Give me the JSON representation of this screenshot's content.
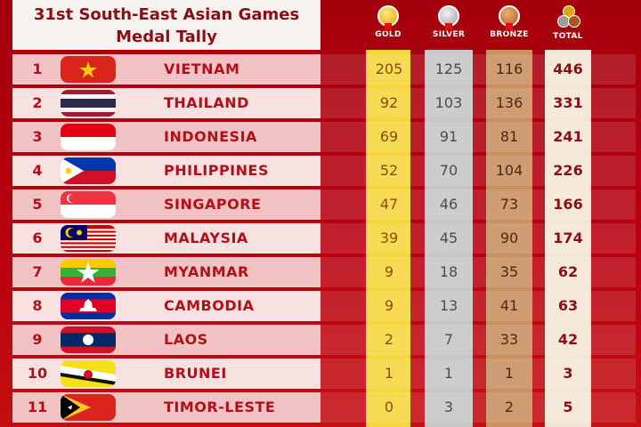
{
  "title": {
    "line1": "31st South-East Asian Games",
    "line2": "Medal Tally"
  },
  "columns": {
    "gold": "GOLD",
    "silver": "SILVER",
    "bronze": "BRONZE",
    "total": "TOTAL"
  },
  "colors": {
    "gold": "#f7d63d",
    "silver": "#c7c7c7",
    "bronze": "#c99060",
    "background": "#b8000f",
    "text_accent": "#b0101a"
  },
  "rows": [
    {
      "rank": "1",
      "country": "VIETNAM",
      "flag": "vietnam-flag-icon",
      "gold": "205",
      "silver": "125",
      "bronze": "116",
      "total": "446"
    },
    {
      "rank": "2",
      "country": "THAILAND",
      "flag": "thailand-flag-icon",
      "gold": "92",
      "silver": "103",
      "bronze": "136",
      "total": "331"
    },
    {
      "rank": "3",
      "country": "INDONESIA",
      "flag": "indonesia-flag-icon",
      "gold": "69",
      "silver": "91",
      "bronze": "81",
      "total": "241"
    },
    {
      "rank": "4",
      "country": "PHILIPPINES",
      "flag": "philippines-flag-icon",
      "gold": "52",
      "silver": "70",
      "bronze": "104",
      "total": "226"
    },
    {
      "rank": "5",
      "country": "SINGAPORE",
      "flag": "singapore-flag-icon",
      "gold": "47",
      "silver": "46",
      "bronze": "73",
      "total": "166"
    },
    {
      "rank": "6",
      "country": "MALAYSIA",
      "flag": "malaysia-flag-icon",
      "gold": "39",
      "silver": "45",
      "bronze": "90",
      "total": "174"
    },
    {
      "rank": "7",
      "country": "MYANMAR",
      "flag": "myanmar-flag-icon",
      "gold": "9",
      "silver": "18",
      "bronze": "35",
      "total": "62"
    },
    {
      "rank": "8",
      "country": "CAMBODIA",
      "flag": "cambodia-flag-icon",
      "gold": "9",
      "silver": "13",
      "bronze": "41",
      "total": "63"
    },
    {
      "rank": "9",
      "country": "LAOS",
      "flag": "laos-flag-icon",
      "gold": "2",
      "silver": "7",
      "bronze": "33",
      "total": "42"
    },
    {
      "rank": "10",
      "country": "BRUNEI",
      "flag": "brunei-flag-icon",
      "gold": "1",
      "silver": "1",
      "bronze": "1",
      "total": "3"
    },
    {
      "rank": "11",
      "country": "TIMOR-LESTE",
      "flag": "timor-leste-flag-icon",
      "gold": "0",
      "silver": "3",
      "bronze": "2",
      "total": "5"
    }
  ]
}
